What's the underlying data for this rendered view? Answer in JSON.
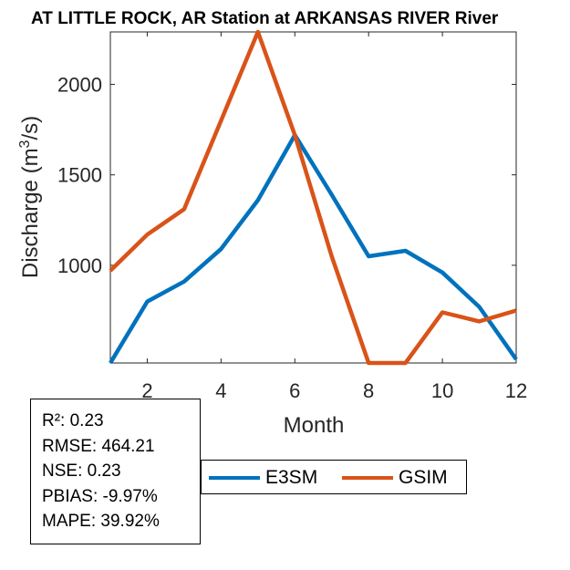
{
  "chart_data": {
    "type": "line",
    "title": "AT LITTLE ROCK, AR  Station at  ARKANSAS RIVER  River",
    "xlabel": "Month",
    "ylabel": "Discharge (m3/s)",
    "x": [
      1,
      2,
      3,
      4,
      5,
      6,
      7,
      8,
      9,
      10,
      11,
      12
    ],
    "xlim": [
      1,
      12
    ],
    "ylim": [
      460,
      2290
    ],
    "xticks": [
      2,
      4,
      6,
      8,
      10,
      12
    ],
    "yticks": [
      1000,
      1500,
      2000
    ],
    "series": [
      {
        "name": "E3SM",
        "color": "#0072BD",
        "values": [
          460,
          800,
          910,
          1090,
          1360,
          1720,
          1390,
          1050,
          1080,
          960,
          770,
          480
        ]
      },
      {
        "name": "GSIM",
        "color": "#D95319",
        "values": [
          970,
          1170,
          1310,
          1800,
          2290,
          1720,
          1050,
          460,
          460,
          740,
          690,
          750
        ]
      }
    ]
  },
  "stats": {
    "r2": "R²: 0.23",
    "rmse": "RMSE: 464.21",
    "nse": "NSE: 0.23",
    "pbias": "PBIAS: -9.97%",
    "mape": "MAPE: 39.92%"
  }
}
